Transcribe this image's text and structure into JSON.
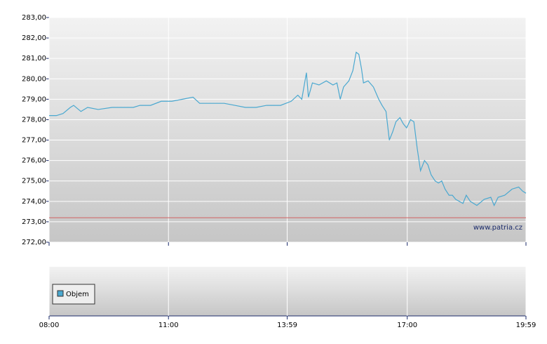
{
  "chart_data": {
    "type": "line",
    "x": [
      480,
      491,
      501,
      512,
      517,
      528,
      538,
      554,
      575,
      591,
      607,
      617,
      633,
      649,
      665,
      681,
      697,
      707,
      723,
      744,
      760,
      776,
      792,
      808,
      829,
      845,
      855,
      861,
      868,
      871,
      877,
      887,
      898,
      908,
      914,
      919,
      924,
      932,
      938,
      943,
      947,
      951,
      954,
      961,
      969,
      977,
      982,
      988,
      993,
      998,
      1003,
      1009,
      1014,
      1019,
      1025,
      1030,
      1035,
      1040,
      1046,
      1051,
      1056,
      1062,
      1067,
      1072,
      1077,
      1083,
      1088,
      1093,
      1104,
      1109,
      1115,
      1125,
      1136,
      1146,
      1151,
      1157,
      1167,
      1178,
      1188,
      1194,
      1199
    ],
    "values": [
      278.2,
      278.2,
      278.3,
      278.6,
      278.7,
      278.4,
      278.6,
      278.5,
      278.6,
      278.6,
      278.6,
      278.7,
      278.7,
      278.9,
      278.9,
      279.0,
      279.1,
      278.8,
      278.8,
      278.8,
      278.7,
      278.6,
      278.6,
      278.7,
      278.7,
      278.9,
      279.2,
      279.0,
      280.3,
      279.1,
      279.8,
      279.7,
      279.9,
      279.7,
      279.8,
      279.0,
      279.6,
      279.9,
      280.4,
      281.3,
      281.2,
      280.5,
      279.8,
      279.9,
      279.6,
      279.0,
      278.7,
      278.4,
      277.0,
      277.4,
      277.9,
      278.1,
      277.8,
      277.6,
      278.0,
      277.9,
      276.6,
      275.5,
      276.0,
      275.8,
      275.3,
      275.0,
      274.9,
      275.0,
      274.6,
      274.3,
      274.3,
      274.1,
      273.9,
      274.3,
      274.0,
      273.8,
      274.1,
      274.2,
      273.8,
      274.2,
      274.3,
      274.6,
      274.7,
      274.5,
      274.4
    ],
    "color": "#4aa8d0",
    "reference_value": 273.2,
    "reference_color": "#d06060",
    "xlim": [
      480,
      1199
    ],
    "xticks": [
      {
        "value": 480,
        "label": "08:00"
      },
      {
        "value": 660,
        "label": "11:00"
      },
      {
        "value": 839,
        "label": "13:59"
      },
      {
        "value": 1020,
        "label": "17:00"
      },
      {
        "value": 1199,
        "label": "19:59"
      }
    ],
    "ylim": [
      272,
      283
    ],
    "yticks": [
      {
        "value": 272,
        "label": "272,00"
      },
      {
        "value": 273,
        "label": "273,00"
      },
      {
        "value": 274,
        "label": "274,00"
      },
      {
        "value": 275,
        "label": "275,00"
      },
      {
        "value": 276,
        "label": "276,00"
      },
      {
        "value": 277,
        "label": "277,00"
      },
      {
        "value": 278,
        "label": "278,00"
      },
      {
        "value": 279,
        "label": "279,00"
      },
      {
        "value": 280,
        "label": "280,00"
      },
      {
        "value": 281,
        "label": "281,00"
      },
      {
        "value": 282,
        "label": "282,00"
      },
      {
        "value": 283,
        "label": "283,00"
      }
    ],
    "grid": true,
    "watermark": "www.patria.cz",
    "volume_legend": "Objem",
    "volume_color": "#4aa8d0"
  }
}
